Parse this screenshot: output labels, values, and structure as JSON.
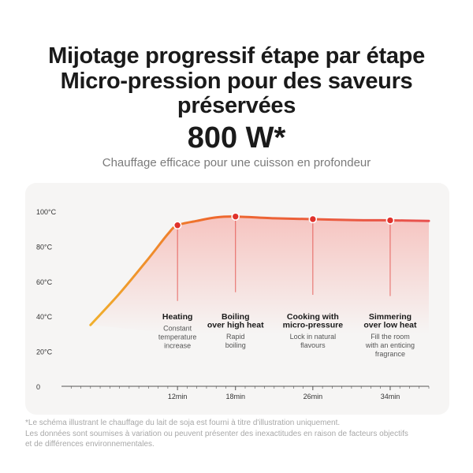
{
  "header": {
    "line1": "Mijotage progressif étape par étape",
    "line2": "Micro-pression pour des saveurs",
    "line3": "préservées",
    "power": "800 W*",
    "subtitle": "Chauffage efficace pour une cuisson en profondeur"
  },
  "chart_data": {
    "type": "line",
    "title": "",
    "xlabel": "",
    "ylabel": "",
    "y_tick_labels": [
      "100°C",
      "80°C",
      "60°C",
      "40°C",
      "20°C",
      "0"
    ],
    "y_ticks": [
      100,
      80,
      60,
      40,
      20,
      0
    ],
    "x_tick_labels": [
      "12min",
      "18min",
      "26min",
      "34min"
    ],
    "x_ticks": [
      12,
      18,
      26,
      34
    ],
    "xlim": [
      0,
      38
    ],
    "ylim": [
      0,
      100
    ],
    "grid": false,
    "series": [
      {
        "name": "",
        "x": [
          3,
          6,
          9,
          11,
          12,
          14,
          16,
          18,
          22,
          26,
          30,
          34,
          38
        ],
        "y": [
          35,
          53,
          73,
          87,
          92,
          94.5,
          96.5,
          97,
          96,
          95.5,
          95,
          94.8,
          94.5
        ]
      }
    ],
    "markers": [
      {
        "x": 12,
        "y": 92
      },
      {
        "x": 18,
        "y": 97
      },
      {
        "x": 26,
        "y": 95.5
      },
      {
        "x": 34,
        "y": 94.8
      }
    ],
    "stages": [
      {
        "x": 12,
        "title": [
          "Heating"
        ],
        "desc": [
          "Constant",
          "temperature",
          "increase"
        ]
      },
      {
        "x": 18,
        "title": [
          "Boiling",
          "over high heat"
        ],
        "desc": [
          "Rapid",
          "boiling"
        ]
      },
      {
        "x": 26,
        "title": [
          "Cooking with",
          "micro-pressure"
        ],
        "desc": [
          "Lock in natural",
          "flavours"
        ]
      },
      {
        "x": 34,
        "title": [
          "Simmering",
          "over low heat"
        ],
        "desc": [
          "Fill the room",
          "with an enticing",
          "fragrance"
        ]
      }
    ],
    "colors": {
      "curve_start": "#f0b02c",
      "curve_mid": "#ee6a2c",
      "curve_end": "#e8504e",
      "marker": "#e0322c",
      "fill": "#f59c96",
      "axis": "#555555",
      "label": "#333333",
      "desc": "#555555"
    }
  },
  "footnote": {
    "line1": "*Le schéma illustrant le chauffage du lait de soja est fourni à titre d'illustration uniquement.",
    "line2": "Les données sont soumises à variation ou peuvent présenter des inexactitudes en raison de facteurs objectifs",
    "line3": "et de différences environnementales."
  }
}
